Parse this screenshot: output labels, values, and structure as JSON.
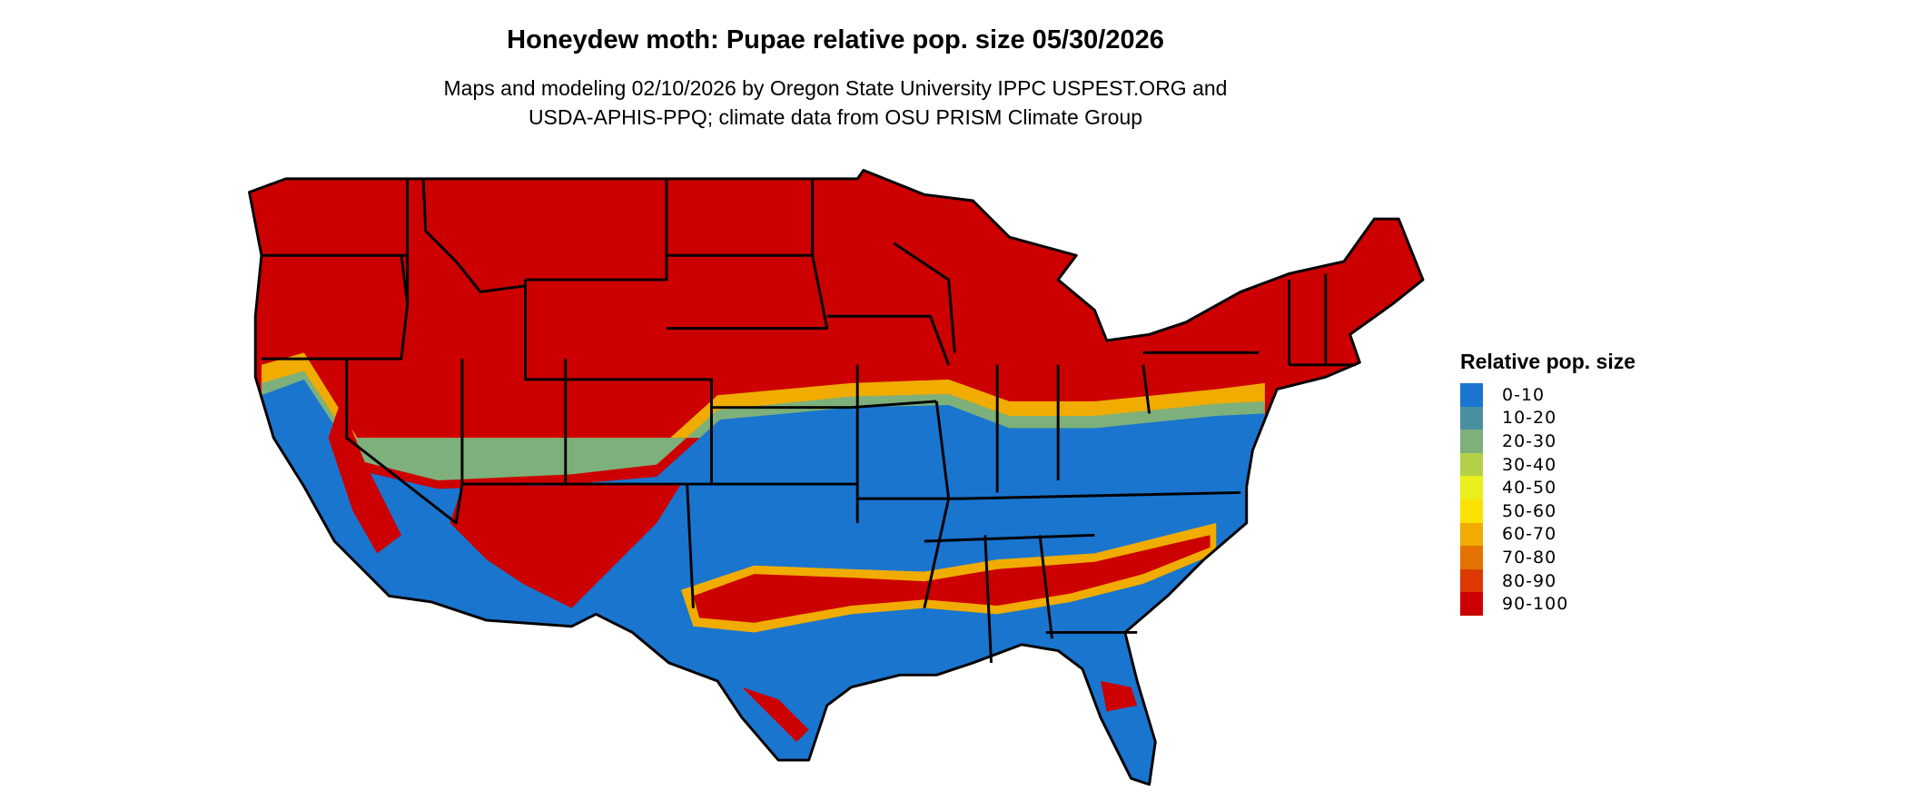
{
  "title": "Honeydew moth: Pupae relative pop. size 05/30/2026",
  "subtitle_lines": [
    "Maps and modeling 02/10/2026 by Oregon State University IPPC USPEST.ORG and",
    "USDA-APHIS-PPQ; climate data from OSU PRISM Climate Group"
  ],
  "legend": {
    "title": "Relative pop. size",
    "items": [
      {
        "label": "0-10",
        "color": "#1a75cf"
      },
      {
        "label": "10-20",
        "color": "#4a90a0"
      },
      {
        "label": "20-30",
        "color": "#7db07a"
      },
      {
        "label": "30-40",
        "color": "#b3d147"
      },
      {
        "label": "40-50",
        "color": "#e8ef1a"
      },
      {
        "label": "50-60",
        "color": "#fae200"
      },
      {
        "label": "60-70",
        "color": "#f0ac00"
      },
      {
        "label": "70-80",
        "color": "#e37200"
      },
      {
        "label": "80-90",
        "color": "#dc3a00"
      },
      {
        "label": "90-100",
        "color": "#cc0000"
      }
    ]
  },
  "map": {
    "region": "contiguous United States",
    "boundaries": "state outlines",
    "dominant_north": "90-100",
    "dominant_south": "0-10"
  }
}
